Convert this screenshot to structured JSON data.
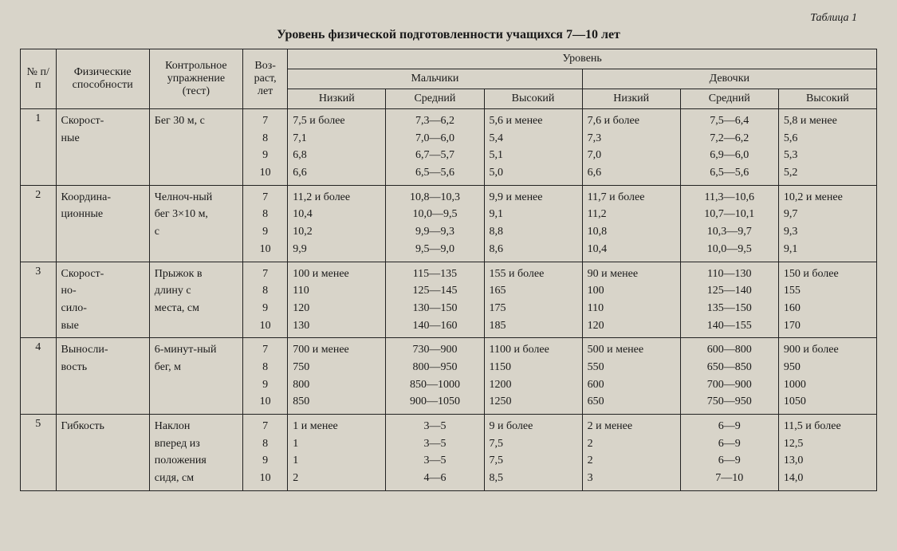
{
  "table_label": "Таблица 1",
  "title": "Уровень физической подготовленности учащихся 7—10 лет",
  "headers": {
    "num": "№ п/п",
    "ability": "Физические способности",
    "test": "Контрольное упражнение (тест)",
    "age": "Воз-раст, лет",
    "level": "Уровень",
    "boys": "Мальчики",
    "girls": "Девочки",
    "low": "Низкий",
    "mid": "Средний",
    "high": "Высокий"
  },
  "rows": [
    {
      "n": "1",
      "ability": "Скорост-ные",
      "test": "Бег 30 м, с",
      "ages": [
        "7",
        "8",
        "9",
        "10"
      ],
      "boys_low": [
        "7,5 и более",
        "7,1",
        "6,8",
        "6,6"
      ],
      "boys_mid": [
        "7,3—6,2",
        "7,0—6,0",
        "6,7—5,7",
        "6,5—5,6"
      ],
      "boys_high": [
        "5,6 и менее",
        "5,4",
        "5,1",
        "5,0"
      ],
      "girls_low": [
        "7,6 и более",
        "7,3",
        "7,0",
        "6,6"
      ],
      "girls_mid": [
        "7,5—6,4",
        "7,2—6,2",
        "6,9—6,0",
        "6,5—5,6"
      ],
      "girls_high": [
        "5,8 и менее",
        "5,6",
        "5,3",
        "5,2"
      ]
    },
    {
      "n": "2",
      "ability": "Координа-ционные",
      "test": "Челноч-ный бег 3×10 м, с",
      "ages": [
        "7",
        "8",
        "9",
        "10"
      ],
      "boys_low": [
        "11,2 и более",
        "10,4",
        "10,2",
        "9,9"
      ],
      "boys_mid": [
        "10,8—10,3",
        "10,0—9,5",
        "9,9—9,3",
        "9,5—9,0"
      ],
      "boys_high": [
        "9,9 и менее",
        "9,1",
        "8,8",
        "8,6"
      ],
      "girls_low": [
        "11,7 и более",
        "11,2",
        "10,8",
        "10,4"
      ],
      "girls_mid": [
        "11,3—10,6",
        "10,7—10,1",
        "10,3—9,7",
        "10,0—9,5"
      ],
      "girls_high": [
        "10,2 и менее",
        "9,7",
        "9,3",
        "9,1"
      ]
    },
    {
      "n": "3",
      "ability": "Скорост-но-сило-вые",
      "test": "Прыжок в длину с места, см",
      "ages": [
        "7",
        "8",
        "9",
        "10"
      ],
      "boys_low": [
        "100 и менее",
        "110",
        "120",
        "130"
      ],
      "boys_mid": [
        "115—135",
        "125—145",
        "130—150",
        "140—160"
      ],
      "boys_high": [
        "155 и более",
        "165",
        "175",
        "185"
      ],
      "girls_low": [
        "90 и менее",
        "100",
        "110",
        "120"
      ],
      "girls_mid": [
        "110—130",
        "125—140",
        "135—150",
        "140—155"
      ],
      "girls_high": [
        "150 и более",
        "155",
        "160",
        "170"
      ]
    },
    {
      "n": "4",
      "ability": "Выносли-вость",
      "test": "6-минут-ный бег, м",
      "ages": [
        "7",
        "8",
        "9",
        "10"
      ],
      "boys_low": [
        "700 и менее",
        "750",
        "800",
        "850"
      ],
      "boys_mid": [
        "730—900",
        "800—950",
        "850—1000",
        "900—1050"
      ],
      "boys_high": [
        "1100 и более",
        "1150",
        "1200",
        "1250"
      ],
      "girls_low": [
        "500 и менее",
        "550",
        "600",
        "650"
      ],
      "girls_mid": [
        "600—800",
        "650—850",
        "700—900",
        "750—950"
      ],
      "girls_high": [
        "900 и более",
        "950",
        "1000",
        "1050"
      ]
    },
    {
      "n": "5",
      "ability": "Гибкость",
      "test": "Наклон вперед из положения сидя, см",
      "ages": [
        "7",
        "8",
        "9",
        "10"
      ],
      "boys_low": [
        "1 и менее",
        "1",
        "1",
        "2"
      ],
      "boys_mid": [
        "3—5",
        "3—5",
        "3—5",
        "4—6"
      ],
      "boys_high": [
        "9 и более",
        "7,5",
        "7,5",
        "8,5"
      ],
      "girls_low": [
        "2 и менее",
        "2",
        "2",
        "3"
      ],
      "girls_mid": [
        "6—9",
        "6—9",
        "6—9",
        "7—10"
      ],
      "girls_high": [
        "11,5 и более",
        "12,5",
        "13,0",
        "14,0"
      ]
    }
  ]
}
